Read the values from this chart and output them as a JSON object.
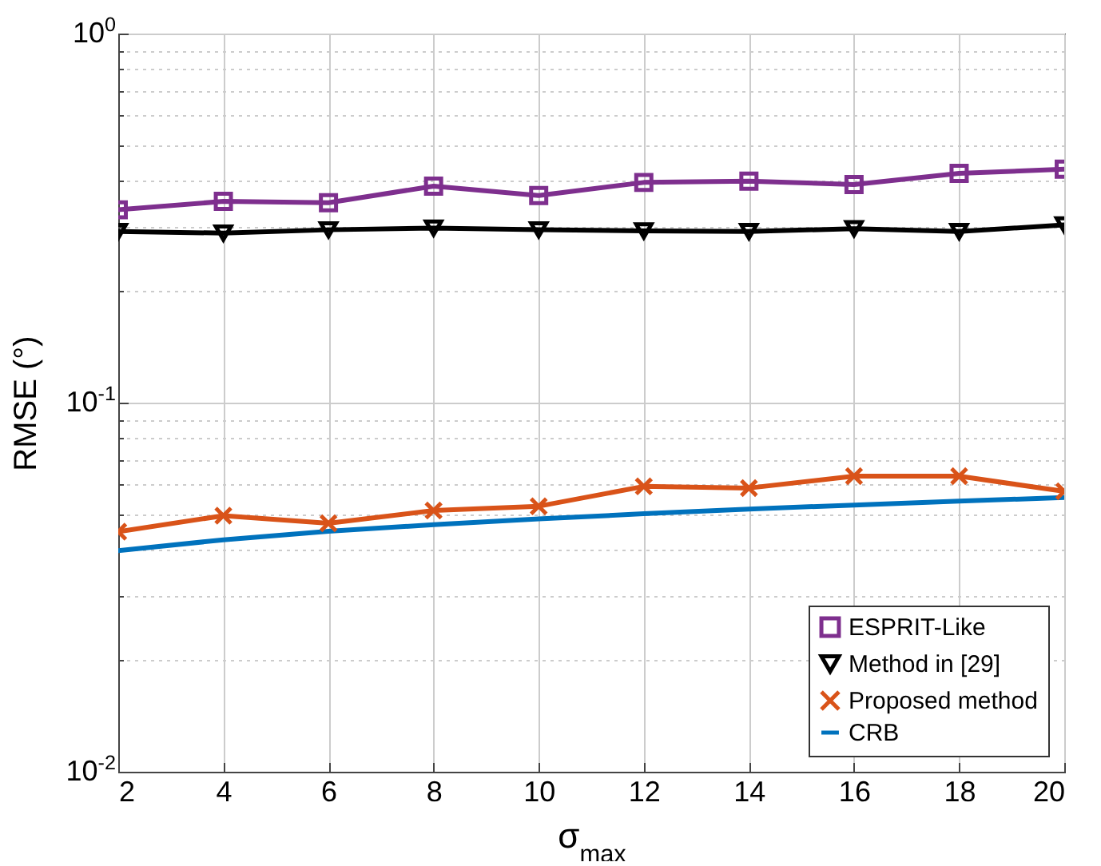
{
  "chart_data": {
    "type": "line",
    "xlabel": "σ$_{max}$",
    "ylabel": "RMSE (°)",
    "x": [
      2,
      4,
      6,
      8,
      10,
      12,
      14,
      16,
      18,
      20
    ],
    "series": [
      {
        "name": "ESPRIT-Like",
        "color": "#7e2f8e",
        "marker": "square",
        "values": [
          0.333,
          0.351,
          0.348,
          0.386,
          0.364,
          0.395,
          0.398,
          0.39,
          0.418,
          0.429
        ]
      },
      {
        "name": "Method in [29]",
        "color": "#000000",
        "marker": "triangle",
        "values": [
          0.291,
          0.288,
          0.294,
          0.297,
          0.294,
          0.292,
          0.291,
          0.296,
          0.291,
          0.303
        ]
      },
      {
        "name": "Proposed method",
        "color": "#d95319",
        "marker": "cross",
        "values": [
          0.0447,
          0.0494,
          0.0471,
          0.051,
          0.0524,
          0.0593,
          0.0587,
          0.0632,
          0.0632,
          0.0575
        ]
      },
      {
        "name": "CRB",
        "color": "#0072bd",
        "marker": "none",
        "values": [
          0.0397,
          0.0425,
          0.0448,
          0.0467,
          0.0484,
          0.05,
          0.0515,
          0.0528,
          0.0541,
          0.0553
        ]
      }
    ],
    "log": "y",
    "xlim": [
      2,
      20
    ],
    "xticks": [
      2,
      4,
      6,
      8,
      10,
      12,
      14,
      16,
      18,
      20
    ],
    "ylim": [
      0.01,
      1
    ],
    "yticks": [
      {
        "value": 0.01,
        "label": "10$^{-2}$"
      },
      {
        "value": 0.02,
        "label": null
      },
      {
        "value": 0.03,
        "label": null
      },
      {
        "value": 0.04,
        "label": null
      },
      {
        "value": 0.05,
        "label": null
      },
      {
        "value": 0.06,
        "label": null
      },
      {
        "value": 0.07,
        "label": null
      },
      {
        "value": 0.08,
        "label": null
      },
      {
        "value": 0.09,
        "label": null
      },
      {
        "value": 0.1,
        "label": "10$^{-1}$"
      },
      {
        "value": 0.2,
        "label": null
      },
      {
        "value": 0.3,
        "label": null
      },
      {
        "value": 0.4,
        "label": null
      },
      {
        "value": 0.5,
        "label": null
      },
      {
        "value": 0.6,
        "label": null
      },
      {
        "value": 0.7,
        "label": null
      },
      {
        "value": 0.8,
        "label": null
      },
      {
        "value": 0.9,
        "label": null
      },
      {
        "value": 1,
        "label": "10$^{0}$"
      }
    ],
    "grid": true,
    "legend": "bottom right",
    "line_style": "solid"
  }
}
